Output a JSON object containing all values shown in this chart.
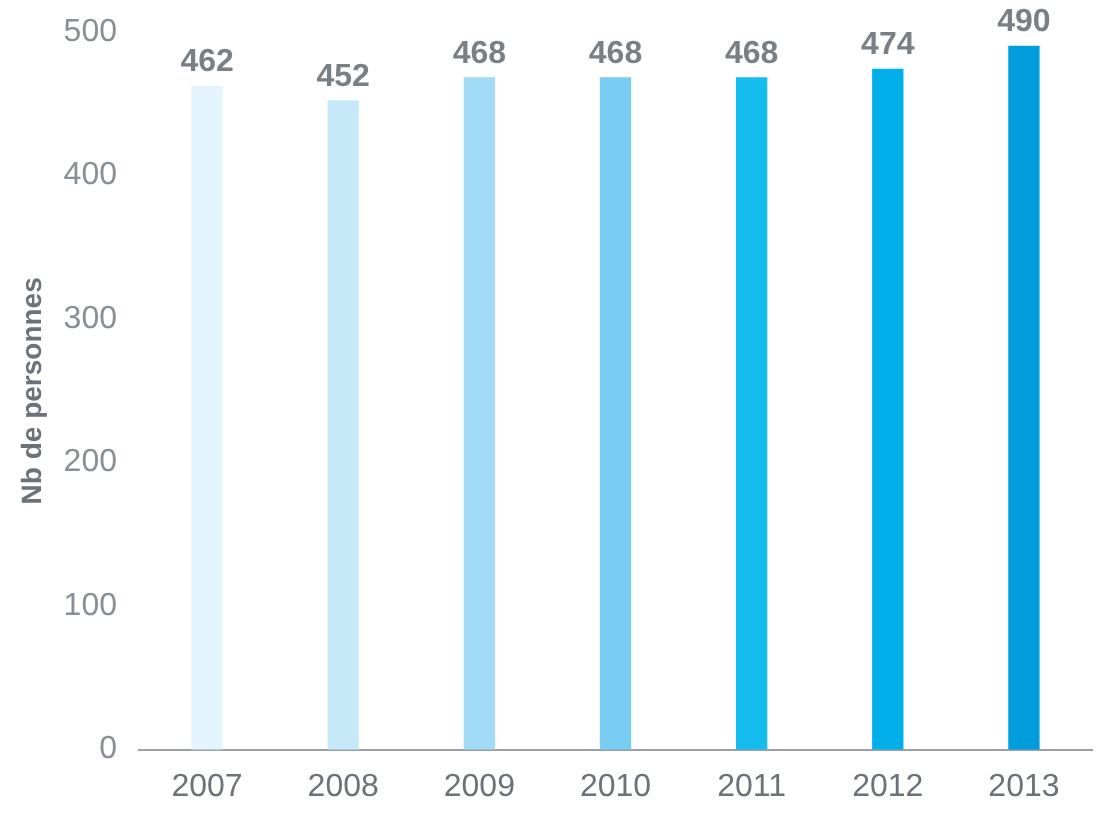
{
  "chart_data": {
    "type": "bar",
    "ylabel": "Nb de personnes",
    "categories": [
      "2007",
      "2008",
      "2009",
      "2010",
      "2011",
      "2012",
      "2013"
    ],
    "values": [
      462,
      452,
      468,
      468,
      468,
      474,
      490
    ],
    "colors": [
      "#e3f4fc",
      "#c6e8f8",
      "#a2dbf5",
      "#7acdf2",
      "#14bdee",
      "#00aee9",
      "#009ddd"
    ],
    "ylim": [
      0,
      500
    ],
    "yticks": [
      0,
      100,
      200,
      300,
      400,
      500
    ],
    "grid": false,
    "data_labels": true
  }
}
